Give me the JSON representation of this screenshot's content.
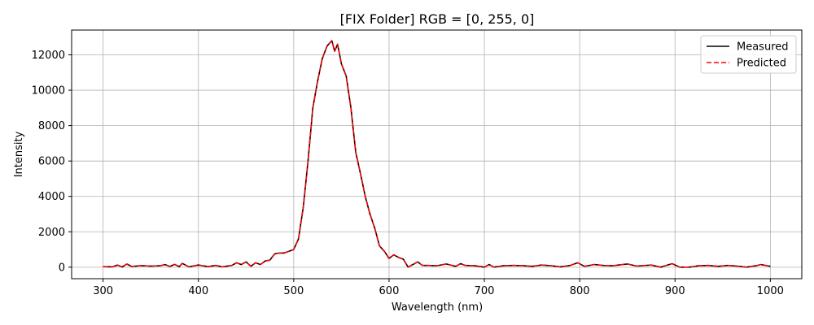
{
  "chart_data": {
    "type": "line",
    "title": "[FIX Folder] RGB = [0, 255, 0]",
    "xlabel": "Wavelength (nm)",
    "ylabel": "Intensity",
    "xlim": [
      267,
      1033
    ],
    "ylim": [
      -650,
      13400
    ],
    "xticks": [
      300,
      400,
      500,
      600,
      700,
      800,
      900,
      1000
    ],
    "yticks": [
      0,
      2000,
      4000,
      6000,
      8000,
      10000,
      12000
    ],
    "grid": true,
    "legend_position": "top-right",
    "series": [
      {
        "name": "Measured",
        "color": "#000000",
        "style": "solid",
        "x": [
          300,
          310,
          315,
          320,
          325,
          330,
          340,
          350,
          360,
          365,
          370,
          375,
          380,
          383,
          390,
          400,
          410,
          418,
          425,
          435,
          440,
          445,
          450,
          455,
          460,
          465,
          470,
          475,
          480,
          485,
          490,
          495,
          500,
          505,
          510,
          515,
          520,
          525,
          530,
          535,
          540,
          543,
          546,
          550,
          555,
          560,
          565,
          570,
          575,
          580,
          585,
          590,
          595,
          600,
          605,
          610,
          615,
          620,
          625,
          630,
          635,
          640,
          650,
          660,
          670,
          675,
          680,
          690,
          700,
          705,
          710,
          720,
          730,
          740,
          750,
          760,
          770,
          780,
          790,
          798,
          805,
          815,
          825,
          835,
          850,
          860,
          875,
          885,
          897,
          905,
          915,
          925,
          935,
          945,
          955,
          965,
          975,
          985,
          990,
          995,
          1000
        ],
        "y": [
          30,
          20,
          120,
          10,
          180,
          40,
          90,
          60,
          80,
          150,
          40,
          160,
          30,
          220,
          20,
          120,
          30,
          100,
          20,
          100,
          250,
          150,
          300,
          50,
          250,
          150,
          350,
          400,
          750,
          800,
          800,
          900,
          1000,
          1600,
          3400,
          6000,
          9000,
          10500,
          11800,
          12500,
          12800,
          12200,
          12600,
          11500,
          10800,
          9000,
          6500,
          5300,
          4000,
          3000,
          2200,
          1200,
          900,
          500,
          700,
          550,
          450,
          0,
          150,
          300,
          100,
          100,
          80,
          180,
          50,
          200,
          100,
          80,
          0,
          150,
          0,
          80,
          100,
          90,
          50,
          120,
          80,
          20,
          100,
          250,
          50,
          150,
          100,
          80,
          180,
          60,
          120,
          0,
          200,
          0,
          0,
          80,
          100,
          50,
          100,
          60,
          0,
          80,
          150,
          100,
          50
        ]
      },
      {
        "name": "Predicted",
        "color": "#ff0000",
        "style": "dashed",
        "x": [
          300,
          310,
          315,
          320,
          325,
          330,
          340,
          350,
          360,
          365,
          370,
          375,
          380,
          383,
          390,
          400,
          410,
          418,
          425,
          435,
          440,
          445,
          450,
          455,
          460,
          465,
          470,
          475,
          480,
          485,
          490,
          495,
          500,
          505,
          510,
          515,
          520,
          525,
          530,
          535,
          540,
          543,
          546,
          550,
          555,
          560,
          565,
          570,
          575,
          580,
          585,
          590,
          595,
          600,
          605,
          610,
          615,
          620,
          625,
          630,
          635,
          640,
          650,
          660,
          670,
          675,
          680,
          690,
          700,
          705,
          710,
          720,
          730,
          740,
          750,
          760,
          770,
          780,
          790,
          798,
          805,
          815,
          825,
          835,
          850,
          860,
          875,
          885,
          897,
          905,
          915,
          925,
          935,
          945,
          955,
          965,
          975,
          985,
          990,
          995,
          1000
        ],
        "y": [
          30,
          20,
          120,
          10,
          180,
          40,
          90,
          60,
          80,
          150,
          40,
          160,
          30,
          220,
          20,
          120,
          30,
          100,
          20,
          100,
          250,
          150,
          300,
          50,
          250,
          150,
          350,
          400,
          750,
          800,
          800,
          900,
          1000,
          1600,
          3400,
          6000,
          9000,
          10500,
          11800,
          12500,
          12800,
          12200,
          12600,
          11500,
          10800,
          9000,
          6500,
          5300,
          4000,
          3000,
          2200,
          1200,
          900,
          500,
          700,
          550,
          450,
          0,
          150,
          300,
          100,
          100,
          80,
          180,
          50,
          200,
          100,
          80,
          0,
          150,
          0,
          80,
          100,
          90,
          50,
          120,
          80,
          20,
          100,
          250,
          50,
          150,
          100,
          80,
          180,
          60,
          120,
          0,
          200,
          0,
          0,
          80,
          100,
          50,
          100,
          60,
          0,
          80,
          150,
          100,
          50
        ]
      }
    ]
  }
}
